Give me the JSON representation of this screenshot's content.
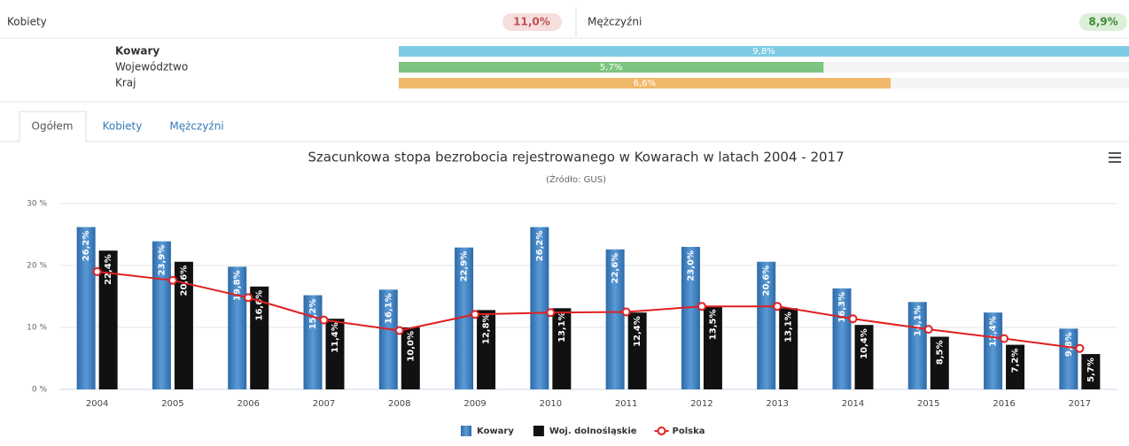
{
  "summary": {
    "women_label": "Kobiety",
    "women_value": "11,0%",
    "men_label": "Mężczyźni",
    "men_value": "8,9%"
  },
  "comparison": {
    "labels": [
      "Kowary",
      "Województwo",
      "Kraj"
    ],
    "values": [
      9.8,
      5.7,
      6.6
    ],
    "value_labels": [
      "9,8%",
      "5,7%",
      "6,6%"
    ],
    "colors": [
      "#7ecbe4",
      "#7cc47f",
      "#f0b86a"
    ]
  },
  "tabs": [
    "Ogółem",
    "Kobiety",
    "Mężczyźni"
  ],
  "chart_data": {
    "type": "bar",
    "title": "Szacunkowa stopa bezrobocia rejestrowanego w Kowarach w latach 2004 - 2017",
    "subtitle": "(Źródło: GUS)",
    "categories": [
      "2004",
      "2005",
      "2006",
      "2007",
      "2008",
      "2009",
      "2010",
      "2011",
      "2012",
      "2013",
      "2014",
      "2015",
      "2016",
      "2017"
    ],
    "series": [
      {
        "name": "Kowary",
        "type": "bar",
        "color": "#3d7fc1",
        "values": [
          26.2,
          23.9,
          19.8,
          15.2,
          16.1,
          22.9,
          26.2,
          22.6,
          23.0,
          20.6,
          16.3,
          14.1,
          12.4,
          9.8
        ],
        "value_labels": [
          "26,2%",
          "23,9%",
          "19,8%",
          "15,2%",
          "16,1%",
          "22,9%",
          "26,2%",
          "22,6%",
          "23,0%",
          "20,6%",
          "16,3%",
          "14,1%",
          "12,4%",
          "9,8%"
        ]
      },
      {
        "name": "Woj. dolnośląskie",
        "type": "bar",
        "color": "#111111",
        "values": [
          22.4,
          20.6,
          16.6,
          11.4,
          10.0,
          12.8,
          13.1,
          12.4,
          13.5,
          13.1,
          10.4,
          8.5,
          7.2,
          5.7
        ],
        "value_labels": [
          "22,4%",
          "20,6%",
          "16,6%",
          "11,4%",
          "10,0%",
          "12,8%",
          "13,1%",
          "12,4%",
          "13,5%",
          "13,1%",
          "10,4%",
          "8,5%",
          "7,2%",
          "5,7%"
        ]
      },
      {
        "name": "Polska",
        "type": "line",
        "color": "#e02020",
        "values": [
          19.0,
          17.6,
          14.8,
          11.2,
          9.5,
          12.1,
          12.4,
          12.5,
          13.4,
          13.4,
          11.4,
          9.7,
          8.2,
          6.6
        ]
      }
    ],
    "ylim": [
      0,
      30
    ],
    "yticks": [
      {
        "value": 0,
        "label": "0 %"
      },
      {
        "value": 10,
        "label": "10 %"
      },
      {
        "value": 20,
        "label": "20 %"
      },
      {
        "value": 30,
        "label": "30 %"
      }
    ],
    "grid": true,
    "legend": "bottom"
  }
}
